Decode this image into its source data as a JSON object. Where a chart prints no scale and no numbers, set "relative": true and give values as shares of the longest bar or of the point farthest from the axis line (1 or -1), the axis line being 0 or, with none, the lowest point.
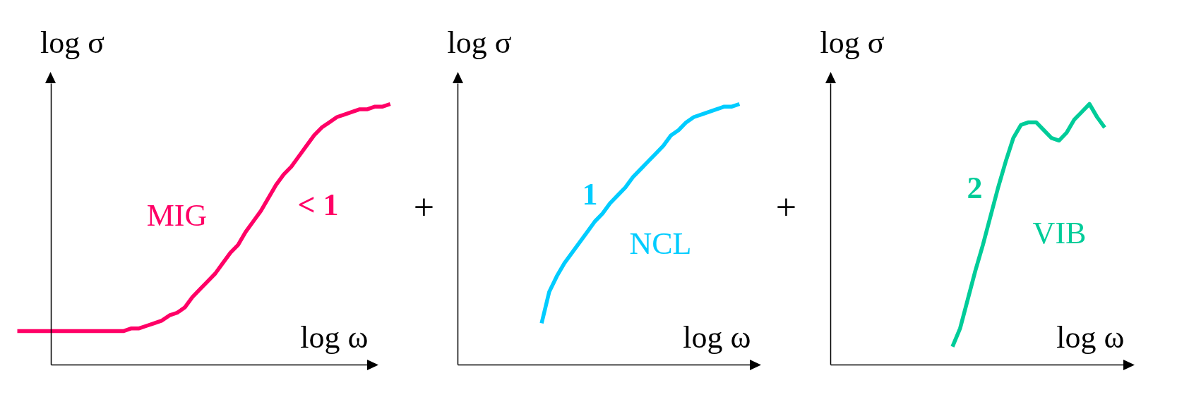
{
  "chart_data": [
    {
      "type": "line",
      "relative": true,
      "xlabel": "log ω",
      "ylabel": "log σ",
      "categories": [
        null,
        null,
        null,
        null,
        null,
        null,
        null,
        null,
        null,
        null,
        null,
        null,
        null,
        null,
        null,
        null,
        null,
        null,
        null,
        null,
        null,
        null,
        null,
        null,
        null,
        null,
        null,
        null,
        null,
        null,
        null,
        null,
        null,
        null,
        null,
        null,
        null,
        null,
        null,
        null,
        null,
        null,
        null,
        null,
        null,
        null,
        null,
        null,
        null,
        null
      ],
      "series": [
        {
          "name": "MIG",
          "color": "#ff0066",
          "values": [
            0.13,
            0.13,
            0.13,
            0.13,
            0.13,
            0.13,
            0.13,
            0.13,
            0.13,
            0.13,
            0.13,
            0.13,
            0.13,
            0.13,
            0.13,
            0.14,
            0.14,
            0.15,
            0.16,
            0.17,
            0.19,
            0.2,
            0.22,
            0.26,
            0.29,
            0.32,
            0.35,
            0.39,
            0.43,
            0.46,
            0.51,
            0.55,
            0.59,
            0.64,
            0.69,
            0.73,
            0.76,
            0.8,
            0.84,
            0.88,
            0.91,
            0.93,
            0.95,
            0.96,
            0.97,
            0.98,
            0.98,
            0.99,
            0.99,
            1
          ]
        }
      ],
      "annotations": [
        "< 1"
      ]
    },
    {
      "type": "line",
      "relative": true,
      "xlabel": "log ω",
      "ylabel": "log σ",
      "categories": [
        null,
        null,
        null,
        null,
        null,
        null,
        null,
        null,
        null,
        null,
        null,
        null,
        null,
        null,
        null,
        null,
        null,
        null,
        null,
        null,
        null,
        null,
        null,
        null,
        null,
        null,
        null,
        null,
        null,
        null,
        null,
        null,
        null,
        null,
        null,
        null,
        null,
        null,
        null,
        null,
        null
      ],
      "series": [
        {
          "name": "NCL",
          "color": "#00ccff",
          "values": [
            null,
            null,
            null,
            null,
            null,
            null,
            null,
            null,
            null,
            null,
            null,
            0.16,
            0.28,
            0.34,
            0.39,
            0.43,
            0.47,
            0.51,
            0.55,
            0.58,
            0.62,
            0.65,
            0.68,
            0.72,
            0.75,
            0.78,
            0.81,
            0.84,
            0.88,
            0.9,
            0.93,
            0.95,
            0.96,
            0.97,
            0.98,
            0.99,
            0.99,
            1,
            null,
            null,
            null
          ]
        }
      ],
      "annotations": [
        "+",
        "1"
      ]
    },
    {
      "type": "line",
      "relative": true,
      "xlabel": "log ω",
      "ylabel": "log σ",
      "categories": [
        null,
        null,
        null,
        null,
        null,
        null,
        null,
        null,
        null,
        null,
        null,
        null,
        null,
        null,
        null,
        null,
        null,
        null,
        null,
        null,
        null,
        null,
        null,
        null,
        null,
        null,
        null,
        null,
        null,
        null,
        null,
        null,
        null,
        null,
        null,
        null,
        null,
        null,
        null,
        null,
        null
      ],
      "series": [
        {
          "name": "VIB",
          "color": "#00cc99",
          "values": [
            null,
            null,
            null,
            null,
            null,
            null,
            null,
            null,
            null,
            null,
            null,
            null,
            null,
            null,
            null,
            null,
            0.07,
            0.14,
            0.25,
            0.36,
            0.46,
            0.57,
            0.68,
            0.78,
            0.87,
            0.92,
            0.93,
            0.93,
            0.9,
            0.87,
            0.86,
            0.89,
            0.94,
            0.97,
            1,
            0.95,
            0.91,
            null,
            null,
            null,
            null
          ]
        }
      ],
      "annotations": [
        "+",
        "2"
      ]
    }
  ]
}
